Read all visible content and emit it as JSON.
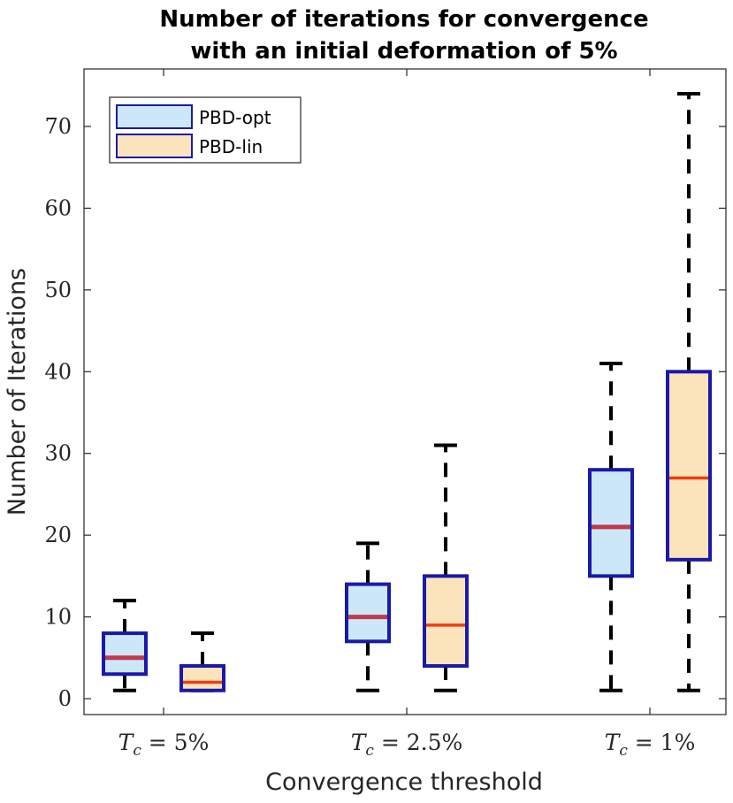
{
  "chart_data": {
    "type": "box",
    "title": [
      "Number of iterations for convergence",
      "with an initial deformation of 5%"
    ],
    "xlabel": "Convergence threshold",
    "ylabel": "Number of Iterations",
    "ylim": [
      -1,
      77
    ],
    "yticks": [
      0,
      10,
      20,
      30,
      40,
      50,
      60,
      70
    ],
    "categories": [
      "T_c = 5%",
      "T_c = 2.5%",
      "T_c = 1%"
    ],
    "category_labels": [
      {
        "var": "T",
        "sub": "c",
        "rest": " = 5%"
      },
      {
        "var": "T",
        "sub": "c",
        "rest": " = 2.5%"
      },
      {
        "var": "T",
        "sub": "c",
        "rest": " = 1%"
      }
    ],
    "legend": {
      "position": "top-left",
      "entries": [
        "PBD-opt",
        "PBD-lin"
      ]
    },
    "colors": {
      "opt_fill": "#cce8f8",
      "lin_fill": "#fbe3bb",
      "box_edge": "#1a1aa6",
      "opt_median": "#c0394d",
      "lin_median": "#f03c12",
      "whisker": "#000000",
      "axis": "#262626"
    },
    "series": [
      {
        "name": "PBD-opt",
        "boxes": [
          {
            "min": 1,
            "q1": 3,
            "median": 5,
            "q3": 8,
            "max": 12
          },
          {
            "min": 1,
            "q1": 7,
            "median": 10,
            "q3": 14,
            "max": 19
          },
          {
            "min": 1,
            "q1": 15,
            "median": 21,
            "q3": 28,
            "max": 41
          }
        ]
      },
      {
        "name": "PBD-lin",
        "boxes": [
          {
            "min": 1,
            "q1": 1,
            "median": 2,
            "q3": 4,
            "max": 8
          },
          {
            "min": 1,
            "q1": 4,
            "median": 9,
            "q3": 15,
            "max": 31
          },
          {
            "min": 1,
            "q1": 17,
            "median": 27,
            "q3": 40,
            "max": 74
          }
        ]
      }
    ]
  }
}
